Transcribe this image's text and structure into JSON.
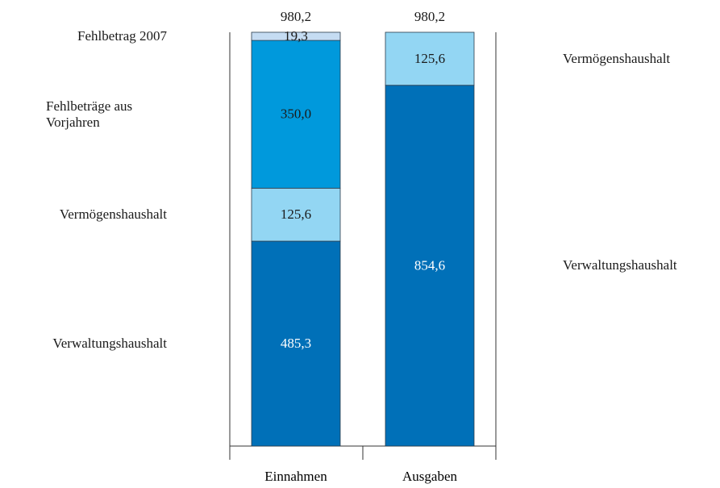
{
  "chart_data": {
    "type": "stacked_bar",
    "categories": [
      "Einnahmen",
      "Ausgaben"
    ],
    "series": [
      {
        "name": "Verwaltungshaushalt",
        "color": "#0070b8",
        "label_color": "#ffffff",
        "values": [
          485.3,
          854.6
        ],
        "value_labels": [
          "485,3",
          "854,6"
        ]
      },
      {
        "name": "Vermögenshaushalt",
        "color": "#93d6f3",
        "label_color": "#1a1a1a",
        "values": [
          125.6,
          125.6
        ],
        "value_labels": [
          "125,6",
          "125,6"
        ]
      },
      {
        "name": "Fehlbeträge aus Vorjahren",
        "color": "#0099dc",
        "label_color": "#1a1a1a",
        "values": [
          350.0,
          null
        ],
        "value_labels": [
          "350,0",
          null
        ]
      },
      {
        "name": "Fehlbetrag 2007",
        "color": "#c5dcf2",
        "label_color": "#1a1a1a",
        "values": [
          19.3,
          null
        ],
        "value_labels": [
          "19,3",
          null
        ]
      }
    ],
    "totals": {
      "values": [
        980.2,
        980.2
      ],
      "value_labels": [
        "980,2",
        "980,2"
      ]
    },
    "ylim": [
      0,
      980.2
    ]
  }
}
